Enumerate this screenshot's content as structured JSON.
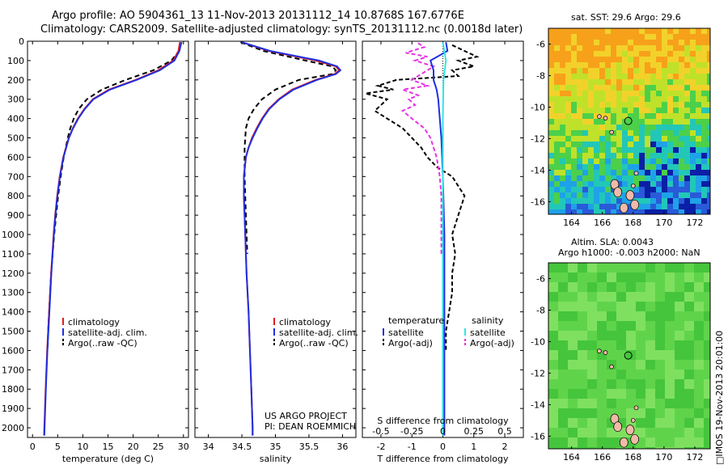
{
  "title_line1": "Argo profile: AO 5904361_13 11-Nov-2013 20131112_14 10.8768S 167.6776E",
  "title_line2": "Climatology: CARS2009. Satellite-adjusted climatology: synTS_20131112.nc (0.0018d later)",
  "sst_title": "sat. SST: 29.6 Argo: 29.6",
  "sla_title1": "Altim. SLA: 0.0043",
  "sla_title2": "Argo h1000: -0.003 h2000: NaN",
  "side_label": "□IMOS 19-Nov-2013 20:01:00",
  "project_label1": "US ARGO PROJECT",
  "project_label2": "PI: DEAN ROEMMICH",
  "colors": {
    "climatology": "#e41a1c",
    "satellite": "#1f2fe0",
    "argo": "#000000",
    "s_satellite": "#2ee6e6",
    "s_argo": "#e633e6"
  },
  "chart_data": [
    {
      "type": "line",
      "panel": "temperature",
      "xlabel": "temperature (deg C)",
      "xlim": [
        -1,
        31
      ],
      "ylim": [
        2050,
        0
      ],
      "xticks": [
        0,
        5,
        10,
        15,
        20,
        25,
        30
      ],
      "yticks": [
        0,
        100,
        200,
        300,
        400,
        500,
        600,
        700,
        800,
        900,
        1000,
        1100,
        1200,
        1300,
        1400,
        1500,
        1600,
        1700,
        1800,
        1900,
        2000
      ],
      "legend": [
        "climatology",
        "satellite-adj. clim.",
        "Argo(..raw -QC)"
      ],
      "series": [
        {
          "name": "climatology",
          "depth": [
            5,
            50,
            100,
            150,
            200,
            250,
            300,
            350,
            400,
            450,
            500,
            600,
            700,
            800,
            900,
            1000,
            1200,
            1400,
            1600,
            1800,
            2000,
            2040
          ],
          "values": [
            29.3,
            29.0,
            28.0,
            25.0,
            20.5,
            15.2,
            12.0,
            10.3,
            9.0,
            8.0,
            7.2,
            6.1,
            5.4,
            4.9,
            4.5,
            4.2,
            3.7,
            3.3,
            2.9,
            2.6,
            2.35,
            2.3
          ]
        },
        {
          "name": "satellite-adj. clim.",
          "depth": [
            5,
            50,
            100,
            150,
            200,
            250,
            300,
            350,
            400,
            450,
            500,
            600,
            700,
            800,
            900,
            1000,
            1200,
            1400,
            1600,
            1800,
            2000,
            2040
          ],
          "values": [
            29.6,
            29.2,
            28.2,
            25.3,
            20.7,
            15.4,
            12.1,
            10.4,
            9.1,
            8.05,
            7.25,
            6.15,
            5.45,
            4.95,
            4.55,
            4.25,
            3.75,
            3.35,
            2.95,
            2.65,
            2.4,
            2.35
          ]
        },
        {
          "name": "Argo(..raw -QC)",
          "depth": [
            5,
            50,
            100,
            150,
            200,
            250,
            300,
            350,
            400,
            450,
            500,
            550,
            600,
            700,
            800,
            900,
            1000,
            1100,
            1200,
            1300,
            1400,
            1500,
            1600
          ],
          "values": [
            29.6,
            29.1,
            27.6,
            24.0,
            18.5,
            13.8,
            10.8,
            9.2,
            8.2,
            7.5,
            7.0,
            6.6,
            6.2,
            5.6,
            5.1,
            4.7,
            4.3,
            4.0,
            3.7,
            3.5,
            3.3,
            3.1,
            3.0
          ]
        }
      ]
    },
    {
      "type": "line",
      "panel": "salinity",
      "xlabel": "salinity",
      "xlim": [
        33.8,
        36.2
      ],
      "ylim": [
        2050,
        0
      ],
      "xticks": [
        34,
        34.5,
        35,
        35.5,
        36
      ],
      "legend": [
        "climatology",
        "satellite-adj. clim.",
        "Argo(..raw -QC)"
      ],
      "series": [
        {
          "name": "climatology",
          "depth": [
            5,
            50,
            100,
            130,
            150,
            170,
            200,
            250,
            300,
            350,
            400,
            450,
            500,
            550,
            600,
            700,
            800,
            1000,
            1200,
            1400,
            1600,
            1800,
            2000,
            2040
          ],
          "values": [
            34.5,
            34.9,
            35.6,
            35.9,
            35.95,
            35.88,
            35.6,
            35.25,
            35.05,
            34.9,
            34.8,
            34.72,
            34.65,
            34.6,
            34.56,
            34.53,
            34.53,
            34.55,
            34.57,
            34.6,
            34.62,
            34.64,
            34.66,
            34.66
          ]
        },
        {
          "name": "satellite-adj. clim.",
          "depth": [
            5,
            50,
            100,
            130,
            150,
            170,
            200,
            250,
            300,
            350,
            400,
            450,
            500,
            550,
            600,
            700,
            800,
            1000,
            1200,
            1400,
            1600,
            1800,
            2000,
            2040
          ],
          "values": [
            34.5,
            34.92,
            35.65,
            35.92,
            35.97,
            35.9,
            35.62,
            35.27,
            35.06,
            34.91,
            34.81,
            34.73,
            34.66,
            34.6,
            34.56,
            34.53,
            34.53,
            34.55,
            34.57,
            34.6,
            34.62,
            34.64,
            34.66,
            34.66
          ]
        },
        {
          "name": "Argo(..raw -QC)",
          "depth": [
            5,
            50,
            100,
            130,
            150,
            170,
            200,
            250,
            300,
            350,
            400,
            450,
            500,
            550,
            600,
            700,
            800,
            900,
            1000,
            1100
          ],
          "values": [
            34.48,
            34.82,
            35.45,
            35.85,
            35.9,
            35.85,
            35.35,
            35.0,
            34.8,
            34.68,
            34.6,
            34.56,
            34.55,
            34.54,
            34.54,
            34.54,
            34.55,
            34.56,
            34.57,
            34.58
          ]
        }
      ]
    },
    {
      "type": "line",
      "panel": "difference",
      "xlabel": "T difference from climatology",
      "xlabel_top": "S difference from climatology",
      "xlim": [
        -2.6,
        2.6
      ],
      "ylim": [
        2050,
        0
      ],
      "xticks": [
        -2,
        -1,
        0,
        1,
        2
      ],
      "xticks_top_labels": [
        "-0.5",
        "-0.25",
        "0",
        "0.25",
        "0.5"
      ],
      "legend_titles": [
        "temperature",
        "salinity"
      ],
      "legend": [
        "satellite",
        "Argo(-adj)",
        "satellite",
        "Argo(-adj)"
      ],
      "series": [
        {
          "name": "T satellite",
          "depth": [
            5,
            50,
            100,
            150,
            200,
            250,
            300,
            400,
            500,
            700,
            1000,
            1500,
            2040
          ],
          "values": [
            0.1,
            0.15,
            -0.4,
            -0.3,
            -0.3,
            -0.2,
            -0.15,
            -0.1,
            -0.05,
            0.0,
            0.05,
            0.05,
            0.05
          ]
        },
        {
          "name": "T Argo(-adj)",
          "depth": [
            20,
            50,
            80,
            100,
            130,
            150,
            180,
            200,
            230,
            250,
            270,
            300,
            330,
            360,
            400,
            450,
            500,
            550,
            600,
            650,
            700,
            800,
            900,
            1000,
            1100,
            1200,
            1300,
            1400,
            1500,
            1600
          ],
          "values": [
            0.3,
            0.7,
            1.1,
            0.5,
            1.0,
            0.3,
            0.5,
            -1.5,
            -2.1,
            -1.6,
            -2.5,
            -1.8,
            -2.0,
            -2.2,
            -1.8,
            -1.3,
            -1.0,
            -0.7,
            -0.5,
            -0.2,
            0.3,
            0.7,
            0.5,
            0.3,
            0.4,
            0.3,
            0.3,
            0.2,
            0.1,
            0.1
          ]
        },
        {
          "name": "S satellite",
          "depth": [
            5,
            100,
            200,
            400,
            600,
            800,
            1000,
            1500,
            2040
          ],
          "values": [
            0.0,
            0.1,
            0.02,
            0.0,
            0.0,
            0.0,
            0.0,
            0.0,
            0.0
          ]
        },
        {
          "name": "S Argo(-adj)",
          "depth": [
            10,
            30,
            60,
            80,
            100,
            130,
            150,
            180,
            200,
            230,
            250,
            280,
            300,
            330,
            360,
            400,
            450,
            500,
            550,
            600,
            700,
            800,
            1000,
            1100
          ],
          "values": [
            -0.8,
            -0.6,
            -1.2,
            -0.5,
            -0.9,
            -0.3,
            -0.5,
            -0.8,
            -1.0,
            -0.5,
            -1.3,
            -0.8,
            -1.1,
            -0.9,
            -1.3,
            -1.0,
            -0.6,
            -0.4,
            -0.3,
            -0.2,
            -0.1,
            -0.05,
            -0.05,
            -0.05
          ]
        }
      ]
    },
    {
      "type": "heatmap",
      "panel": "sst_map",
      "xlim": [
        162.5,
        173
      ],
      "ylim": [
        -16.8,
        -5
      ],
      "xticks": [
        164,
        166,
        168,
        170,
        172
      ],
      "yticks": [
        -6,
        -8,
        -10,
        -12,
        -14,
        -16
      ],
      "argo_position": [
        167.68,
        -10.88
      ]
    },
    {
      "type": "heatmap",
      "panel": "sla_map",
      "xlim": [
        162.5,
        173
      ],
      "ylim": [
        -16.8,
        -5
      ],
      "xticks": [
        164,
        166,
        168,
        170,
        172
      ],
      "yticks": [
        -6,
        -8,
        -10,
        -12,
        -14,
        -16
      ],
      "argo_position": [
        167.68,
        -10.88
      ]
    }
  ]
}
